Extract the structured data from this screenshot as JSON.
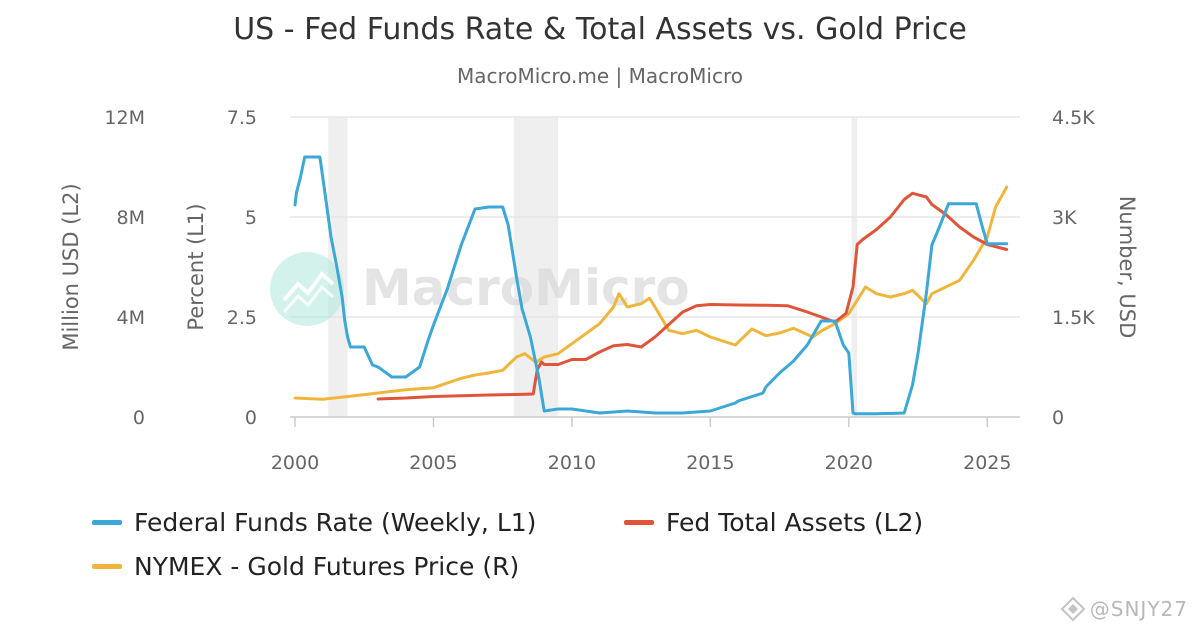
{
  "chart_data": {
    "type": "line",
    "title": "US - Fed Funds Rate & Total Assets vs. Gold Price",
    "subtitle": "MacroMicro.me | MacroMicro",
    "watermark": "MacroMicro",
    "corner_watermark": "@SNJY27",
    "x_ticks": [
      "2000",
      "2005",
      "2010",
      "2015",
      "2020",
      "2025"
    ],
    "xlim": [
      2000,
      2026
    ],
    "axes": {
      "L1": {
        "title": "Percent (L1)",
        "ylim": [
          0,
          7.5
        ],
        "ticks": [
          "0",
          "2.5",
          "5",
          "7.5"
        ]
      },
      "L2": {
        "title": "Million USD (L2)",
        "ylim": [
          0,
          12000000
        ],
        "ticks": [
          "0",
          "4M",
          "8M",
          "12M"
        ]
      },
      "R": {
        "title": "Number, USD",
        "ylim": [
          0,
          4500
        ],
        "ticks": [
          "0",
          "1.5K",
          "3K",
          "4.5K"
        ]
      }
    },
    "recessions": [
      [
        2001.2,
        2001.9
      ],
      [
        2007.9,
        2009.5
      ],
      [
        2020.1,
        2020.3
      ]
    ],
    "legend_position": "bottom",
    "series": [
      {
        "name": "Federal Funds Rate (Weekly, L1)",
        "axis": "L1",
        "color": "#3ba8d8",
        "x": [
          2000.0,
          2000.05,
          2000.2,
          2000.35,
          2000.5,
          2000.7,
          2000.9,
          2001.0,
          2001.1,
          2001.3,
          2001.5,
          2001.7,
          2001.8,
          2001.9,
          2002.0,
          2002.5,
          2002.8,
          2003.0,
          2003.5,
          2004.0,
          2004.5,
          2004.8,
          2005.0,
          2005.5,
          2006.0,
          2006.5,
          2007.0,
          2007.5,
          2007.7,
          2008.0,
          2008.2,
          2008.5,
          2008.8,
          2009.0,
          2009.5,
          2010.0,
          2011.0,
          2012.0,
          2013.0,
          2014.0,
          2015.0,
          2015.9,
          2016.0,
          2016.9,
          2017.0,
          2017.5,
          2018.0,
          2018.5,
          2019.0,
          2019.5,
          2019.8,
          2020.0,
          2020.15,
          2020.25,
          2020.3,
          2021.0,
          2022.0,
          2022.3,
          2022.5,
          2022.8,
          2023.0,
          2023.3,
          2023.6,
          2024.0,
          2024.6,
          2024.8,
          2025.0,
          2025.7
        ],
        "values": [
          5.3,
          5.6,
          6.0,
          6.5,
          6.5,
          6.5,
          6.5,
          6.0,
          5.5,
          4.5,
          3.8,
          3.0,
          2.4,
          2.0,
          1.75,
          1.75,
          1.3,
          1.25,
          1.0,
          1.0,
          1.25,
          1.9,
          2.3,
          3.2,
          4.3,
          5.2,
          5.25,
          5.25,
          4.8,
          3.5,
          2.7,
          2.0,
          1.0,
          0.15,
          0.2,
          0.2,
          0.1,
          0.15,
          0.1,
          0.1,
          0.15,
          0.35,
          0.4,
          0.6,
          0.75,
          1.1,
          1.4,
          1.8,
          2.4,
          2.4,
          1.8,
          1.6,
          0.1,
          0.08,
          0.08,
          0.08,
          0.1,
          0.8,
          1.6,
          3.1,
          4.3,
          4.8,
          5.33,
          5.33,
          5.33,
          4.8,
          4.33,
          4.33
        ]
      },
      {
        "name": "Fed Total Assets (L2)",
        "axis": "L2",
        "color": "#e0553a",
        "x": [
          2003.0,
          2004.0,
          2005.0,
          2006.0,
          2007.0,
          2008.0,
          2008.6,
          2008.75,
          2008.9,
          2009.0,
          2009.5,
          2010.0,
          2010.5,
          2011.0,
          2011.5,
          2012.0,
          2012.5,
          2013.0,
          2013.5,
          2014.0,
          2014.5,
          2015.0,
          2016.0,
          2017.0,
          2017.8,
          2018.5,
          2019.0,
          2019.5,
          2019.9,
          2020.15,
          2020.3,
          2020.5,
          2021.0,
          2021.5,
          2022.0,
          2022.3,
          2022.8,
          2023.0,
          2023.5,
          2024.0,
          2024.5,
          2025.0,
          2025.7
        ],
        "values": [
          720000,
          760000,
          820000,
          850000,
          880000,
          900000,
          920000,
          1900000,
          2200000,
          2100000,
          2100000,
          2300000,
          2300000,
          2600000,
          2850000,
          2900000,
          2800000,
          3200000,
          3700000,
          4200000,
          4450000,
          4500000,
          4480000,
          4470000,
          4450000,
          4200000,
          4000000,
          3800000,
          4150000,
          5200000,
          6900000,
          7100000,
          7500000,
          8000000,
          8700000,
          8950000,
          8800000,
          8500000,
          8100000,
          7600000,
          7200000,
          6900000,
          6700000
        ]
      },
      {
        "name": "NYMEX - Gold Futures Price (R)",
        "axis": "R",
        "color": "#f0b63c",
        "x": [
          2000.0,
          2001.0,
          2002.0,
          2003.0,
          2004.0,
          2005.0,
          2006.0,
          2006.5,
          2007.0,
          2007.5,
          2008.0,
          2008.3,
          2008.7,
          2009.0,
          2009.5,
          2010.0,
          2010.5,
          2011.0,
          2011.5,
          2011.7,
          2012.0,
          2012.5,
          2012.8,
          2013.0,
          2013.5,
          2014.0,
          2014.5,
          2015.0,
          2015.9,
          2016.5,
          2017.0,
          2017.5,
          2018.0,
          2018.7,
          2019.0,
          2019.5,
          2020.0,
          2020.6,
          2021.0,
          2021.5,
          2022.0,
          2022.3,
          2022.8,
          2023.0,
          2023.5,
          2024.0,
          2024.5,
          2025.0,
          2025.3,
          2025.7
        ],
        "values": [
          285,
          265,
          310,
          360,
          410,
          440,
          580,
          630,
          660,
          700,
          900,
          950,
          820,
          900,
          950,
          1100,
          1250,
          1400,
          1650,
          1850,
          1650,
          1700,
          1780,
          1650,
          1300,
          1250,
          1300,
          1200,
          1080,
          1320,
          1220,
          1260,
          1330,
          1200,
          1290,
          1400,
          1550,
          1950,
          1850,
          1800,
          1850,
          1900,
          1700,
          1850,
          1950,
          2050,
          2350,
          2700,
          3150,
          3450
        ]
      }
    ]
  }
}
